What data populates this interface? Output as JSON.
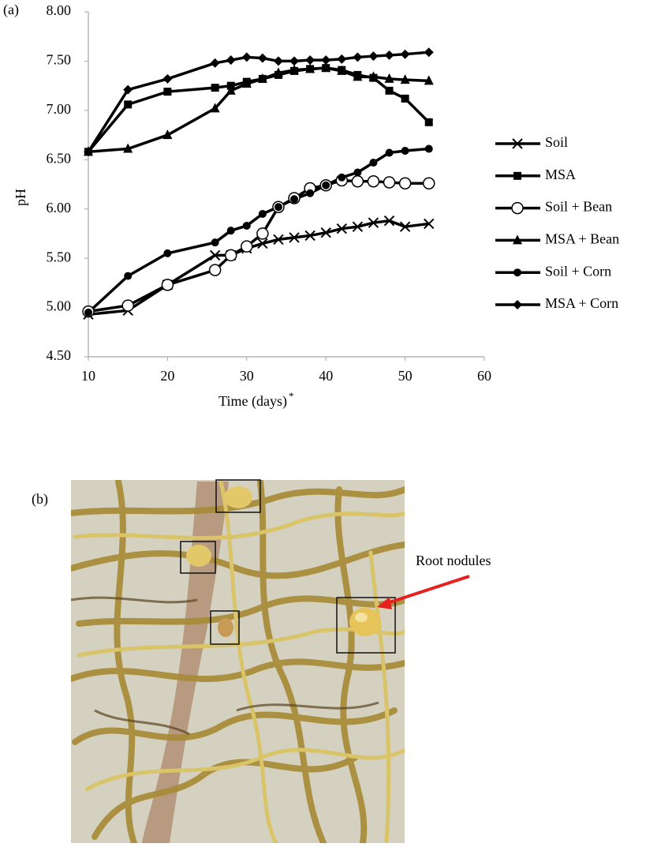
{
  "chart_data": {
    "type": "line",
    "panel_label": "(a)",
    "xlabel": "Time (days)",
    "xlabel_superscript": "*",
    "ylabel": "pH",
    "x": [
      10,
      15,
      20,
      26,
      28,
      30,
      32,
      34,
      36,
      38,
      40,
      42,
      44,
      46,
      48,
      50,
      53
    ],
    "xlim": [
      10,
      60
    ],
    "xticks": [
      10,
      20,
      30,
      40,
      50,
      60
    ],
    "ylim": [
      4.5,
      8
    ],
    "yticks": [
      {
        "value": 4.5,
        "label": "4.50"
      },
      {
        "value": 5,
        "label": "5.00"
      },
      {
        "value": 5.5,
        "label": "5.50"
      },
      {
        "value": 6,
        "label": "6.00"
      },
      {
        "value": 6.5,
        "label": "6.50"
      },
      {
        "value": 7,
        "label": "7.00"
      },
      {
        "value": 7.5,
        "label": "7.50"
      },
      {
        "value": 8,
        "label": "8.00"
      }
    ],
    "grid": false,
    "legend": "right",
    "series": [
      {
        "name": "Soil",
        "color": "#000000",
        "marker": "x",
        "values": [
          4.93,
          4.97,
          5.23,
          5.53,
          5.53,
          5.6,
          5.65,
          5.69,
          5.71,
          5.73,
          5.76,
          5.8,
          5.82,
          5.86,
          5.88,
          5.82,
          5.85
        ]
      },
      {
        "name": "MSA",
        "color": "#000000",
        "marker": "square",
        "values": [
          6.58,
          7.06,
          7.19,
          7.23,
          7.25,
          7.29,
          7.32,
          7.36,
          7.4,
          7.42,
          7.43,
          7.41,
          7.36,
          7.33,
          7.2,
          7.12,
          6.88
        ]
      },
      {
        "name": "Soil + Bean",
        "color": "#000000",
        "marker": "circle-open",
        "values": [
          4.96,
          5.02,
          5.23,
          5.38,
          5.53,
          5.62,
          5.75,
          6.02,
          6.11,
          6.21,
          6.24,
          6.29,
          6.28,
          6.28,
          6.27,
          6.26,
          6.26
        ]
      },
      {
        "name": "MSA + Bean",
        "color": "#000000",
        "marker": "triangle",
        "values": [
          6.58,
          6.61,
          6.75,
          7.02,
          7.2,
          7.27,
          7.32,
          7.38,
          7.41,
          7.42,
          7.43,
          7.4,
          7.34,
          7.34,
          7.32,
          7.31,
          7.3
        ]
      },
      {
        "name": "Soil + Corn",
        "color": "#000000",
        "marker": "circle",
        "values": [
          4.95,
          5.32,
          5.55,
          5.66,
          5.78,
          5.83,
          5.95,
          6.02,
          6.1,
          6.16,
          6.24,
          6.32,
          6.37,
          6.47,
          6.57,
          6.59,
          6.61
        ]
      },
      {
        "name": "MSA + Corn",
        "color": "#000000",
        "marker": "diamond",
        "values": [
          6.58,
          7.21,
          7.32,
          7.48,
          7.51,
          7.54,
          7.53,
          7.5,
          7.5,
          7.51,
          7.51,
          7.52,
          7.54,
          7.55,
          7.56,
          7.57,
          7.59
        ]
      }
    ]
  },
  "photo": {
    "panel_label": "(b)",
    "annotation": "Root nodules"
  }
}
